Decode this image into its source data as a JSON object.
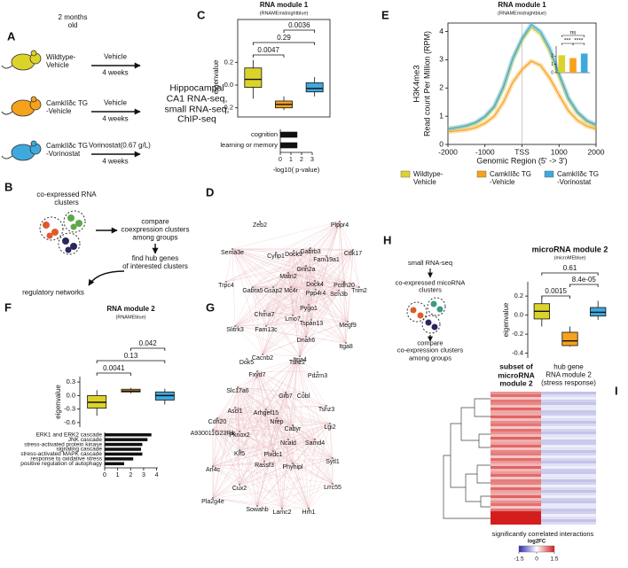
{
  "panel_labels": [
    "A",
    "B",
    "C",
    "D",
    "E",
    "F",
    "G",
    "H",
    "I"
  ],
  "panel_a": {
    "age": "2 months\nold",
    "groups": [
      {
        "name": "Wildtype-\nVehicle",
        "treatment": "Vehicle",
        "duration": "4 weeks"
      },
      {
        "name": "CamkIIδc TG\n-Vehicle",
        "treatment": "Vehicle",
        "duration": "4 weeks"
      },
      {
        "name": "CamkIIδc TG\n-Vorinostat",
        "treatment": "Vorinostat(0.67 g/L)",
        "duration": "4 weeks"
      }
    ],
    "outcome": "Hippocampal\nCA1 RNA-seq,\nsmall RNA-seq,\nChIP-seq"
  },
  "panel_b": {
    "clusters": "co-expressed RNA\nclusters",
    "compare": "compare\ncoexpression clusters\namong groups",
    "hub": "find hub genes\nof interested clusters",
    "result": "regulatory networks"
  },
  "panel_d": {
    "nodes": [
      "Zeb2",
      "Plppr4",
      "Sema3e",
      "Cyfip1",
      "Dock9",
      "Gabrb3",
      "Fam19a1",
      "Cdk17",
      "Grin2a",
      "Trpc4",
      "Matn2",
      "Gabra5",
      "Gsap2",
      "Mc4r",
      "Dock4",
      "Ppp4r4",
      "Pcdh20",
      "Scn3b",
      "Trim2",
      "Pygo1",
      "Chrna7",
      "Lmo7",
      "Tspan13",
      "Slitrk3",
      "Fam13c",
      "Megf9",
      "Dnah6",
      "Itga8",
      "Cacnb2",
      "Itga4"
    ]
  },
  "panel_g": {
    "nodes": [
      "Dok5",
      "Tshz2",
      "Fxyd7",
      "Pdzrn3",
      "Slc17a6",
      "Grb7",
      "Cobl",
      "Ascl1",
      "Arhgef15",
      "Tshz3",
      "Cdh20",
      "Nrep",
      "Cabyr",
      "A930011G23Rik",
      "Lgi2",
      "Pknox2",
      "Ncald",
      "Samd4",
      "Klf5",
      "Plxdc1",
      "Arl4c",
      "Rassf3",
      "Sytl1",
      "Phyhipl",
      "Cux2",
      "Lrrc55",
      "Pla2g4e",
      "Sowahb",
      "Lamc2",
      "Hrh1"
    ]
  },
  "panel_h": {
    "input": "small RNA-seq",
    "clusters": "co-expressed micoRNA\nclusters",
    "compare": "compare\nco-expression clusters\namong groups"
  },
  "panel_i": {
    "column_labels": [
      "subset of\nmicroRNA\nmodule 2",
      "hub gene\nRNA  module 2\n(stress response)"
    ],
    "caption": "significantly correlated interactions",
    "legend_title": "log2FC",
    "legend_ticks": [
      -1.5,
      0,
      1.5
    ]
  },
  "chart_data": [
    {
      "type": "box",
      "title": "RNA module 1",
      "subtitle": "(RNAMEmidnightblue)",
      "y_label": "eigenvalue",
      "categories": [
        null,
        null,
        null
      ],
      "colors": [
        "#dcd32a",
        "#f5a21c",
        "#3fa9de"
      ],
      "values": [
        {
          "min": -0.12,
          "q1": -0.02,
          "median": 0.05,
          "q3": 0.15,
          "max": 0.22
        },
        {
          "min": -0.22,
          "q1": -0.2,
          "median": -0.17,
          "q3": -0.14,
          "max": -0.1
        },
        {
          "min": -0.1,
          "q1": -0.06,
          "median": -0.03,
          "q3": 0.02,
          "max": 0.07
        }
      ],
      "comparisons": [
        "0.0047",
        "0.29",
        "0.0036"
      ],
      "ylim": [
        -0.28,
        0.42
      ],
      "yticks": [
        -0.2,
        {
          "value": 0,
          "label": "0.0"
        },
        0.2
      ]
    },
    {
      "type": "hbar",
      "categories": [
        "cognition",
        "learning or memory"
      ],
      "values": [
        1.6,
        1.6
      ],
      "color": "#111111",
      "xlim": [
        0,
        3
      ],
      "xticks": [
        0,
        1,
        2,
        3
      ],
      "x_label": "-log10( p-value)"
    },
    {
      "type": "line",
      "title": "RNA module 1",
      "subtitle": "(RNAMEmidnightblue)",
      "y_label": "H3K4me3",
      "y_sublabel": "Read count Per Million (RPM)",
      "x_label": "Genomic Region (5' -> 3')",
      "x": [
        -2000,
        -1750,
        -1500,
        -1250,
        -1000,
        -750,
        -500,
        -250,
        0,
        250,
        500,
        750,
        1000,
        1250,
        1500,
        1750,
        2000
      ],
      "series": [
        {
          "name": "Wildtype-\nVehicle",
          "color": "#dcd32a",
          "values": [
            0.55,
            0.6,
            0.65,
            0.75,
            0.95,
            1.3,
            2.0,
            3.0,
            3.7,
            4.15,
            3.9,
            3.3,
            2.4,
            1.6,
            1.1,
            0.8,
            0.65
          ]
        },
        {
          "name": "CamkIIδc TG\n-Vehicle",
          "color": "#f5a21c",
          "values": [
            0.45,
            0.48,
            0.52,
            0.6,
            0.75,
            1.0,
            1.5,
            2.2,
            2.65,
            2.95,
            2.8,
            2.35,
            1.75,
            1.2,
            0.85,
            0.65,
            0.55
          ]
        },
        {
          "name": "CamkIIδc TG\n-Vorinostat",
          "color": "#3fa9de",
          "values": [
            0.55,
            0.6,
            0.67,
            0.78,
            1.0,
            1.35,
            2.05,
            3.05,
            3.75,
            4.25,
            4.0,
            3.4,
            2.5,
            1.65,
            1.15,
            0.85,
            0.7
          ]
        }
      ],
      "xlim": [
        -2000,
        2000
      ],
      "ylim": [
        0,
        4.3
      ],
      "xticks": [
        -2000,
        -1000,
        {
          "value": 0,
          "label": "TSS"
        },
        1000,
        2000
      ],
      "yticks": [
        0,
        1,
        2,
        3,
        4
      ],
      "legend": "bottom"
    },
    {
      "type": "bar",
      "categories": [
        null,
        null,
        null
      ],
      "values": [
        2.1,
        1.75,
        2.3
      ],
      "colors": [
        "#dcd32a",
        "#f5a21c",
        "#3fa9de"
      ],
      "ylim": [
        0,
        3.2
      ],
      "yticks": [
        0,
        1,
        2
      ],
      "annotations": [
        "***",
        "****",
        "ns"
      ]
    },
    {
      "type": "box",
      "title": "RNA module 2",
      "subtitle": "(RNAMEblue)",
      "y_label": "eigenvalue",
      "categories": [
        null,
        null,
        null
      ],
      "colors": [
        "#dcd32a",
        "#f5a21c",
        "#3fa9de"
      ],
      "values": [
        {
          "min": -0.45,
          "q1": -0.28,
          "median": -0.15,
          "q3": 0.0,
          "max": 0.12
        },
        {
          "min": 0.05,
          "q1": 0.08,
          "median": 0.1,
          "q3": 0.14,
          "max": 0.17
        },
        {
          "min": -0.2,
          "q1": -0.1,
          "median": 0.0,
          "q3": 0.08,
          "max": 0.15
        }
      ],
      "comparisons": [
        "0.0041",
        "0.13",
        "0.042"
      ],
      "ylim": [
        -0.7,
        0.42
      ],
      "yticks": [
        -0.6,
        -0.3,
        {
          "value": 0,
          "label": "0.0"
        },
        0.3
      ]
    },
    {
      "type": "hbar",
      "categories": [
        "ERK1 and ERK2 cascade",
        "JNK cascade",
        "stress-activated protein kinase",
        "signaling cascade",
        "stress-activated MAPK cascade",
        "response to oxidative stress",
        "positive regulation of autophagy"
      ],
      "values": [
        3.6,
        3.3,
        2.9,
        2.8,
        2.9,
        2.2,
        1.5
      ],
      "color": "#111111",
      "xlim": [
        0,
        4.1
      ],
      "xticks": [
        0,
        1,
        2,
        3,
        4
      ]
    },
    {
      "type": "box",
      "title": "microRNA module 2",
      "subtitle": "(microMEblue)",
      "y_label": "eigenvalue",
      "categories": [
        null,
        null,
        null
      ],
      "colors": [
        "#dcd32a",
        "#f5a21c",
        "#3fa9de"
      ],
      "values": [
        {
          "min": -0.12,
          "q1": -0.04,
          "median": 0.04,
          "q3": 0.12,
          "max": 0.2
        },
        {
          "min": -0.33,
          "q1": -0.32,
          "median": -0.27,
          "q3": -0.18,
          "max": -0.12
        },
        {
          "min": -0.05,
          "q1": -0.01,
          "median": 0.03,
          "q3": 0.08,
          "max": 0.15
        }
      ],
      "comparisons": [
        "0.0015",
        "8.4e-05",
        "0.61"
      ],
      "ylim": [
        -0.45,
        0.35
      ],
      "yticks": [
        -0.4,
        -0.2,
        {
          "value": 0,
          "label": "0.0"
        },
        0.2
      ]
    }
  ]
}
